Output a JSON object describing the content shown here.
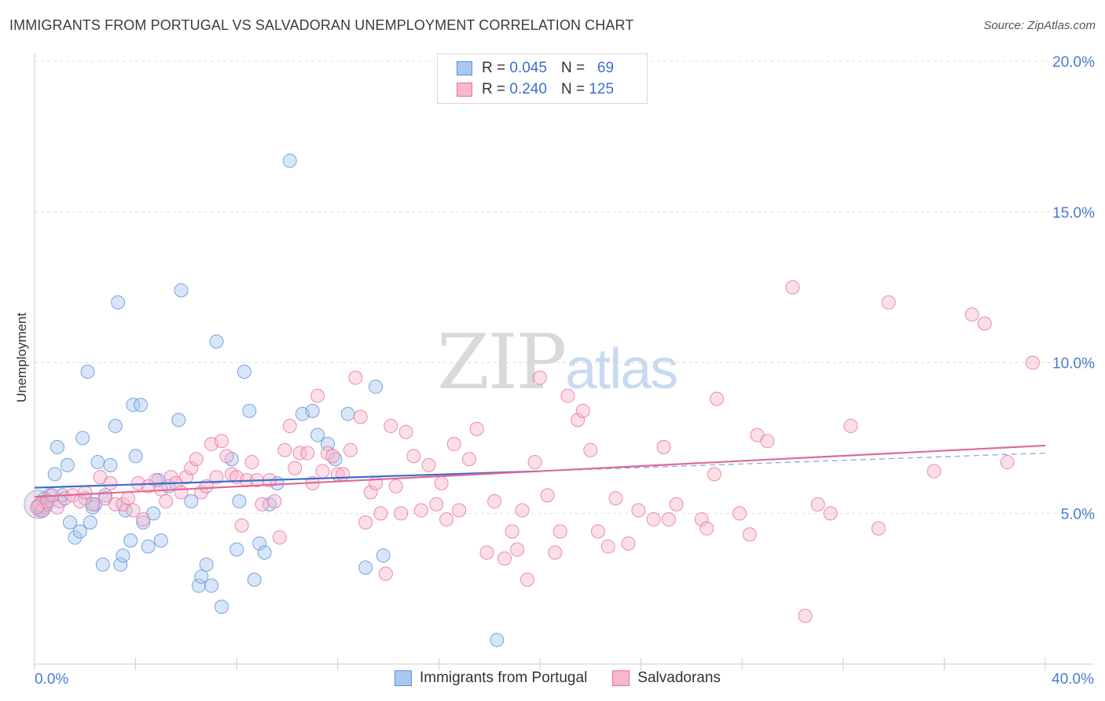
{
  "header": {
    "title": "IMMIGRANTS FROM PORTUGAL VS SALVADORAN UNEMPLOYMENT CORRELATION CHART",
    "source": "Source: ZipAtlas.com"
  },
  "watermark": {
    "zip": "ZIP",
    "atlas": "atlas"
  },
  "legend": {
    "rows": [
      {
        "r_label": "R =",
        "r_value": "0.045",
        "n_label": "N =",
        "n_value": "69",
        "color": "#a9c8f0"
      },
      {
        "r_label": "R =",
        "r_value": "0.240",
        "n_label": "N =",
        "n_value": "125",
        "color": "#f7b8cc"
      }
    ]
  },
  "bottom_legend": [
    {
      "label": "Immigrants from Portugal",
      "color": "#a9c8f0"
    },
    {
      "label": "Salvadorans",
      "color": "#f7b8cc"
    }
  ],
  "chart_data": {
    "type": "scatter",
    "ylabel": "Unemployment",
    "xlim": [
      0,
      40
    ],
    "ylim": [
      0,
      20
    ],
    "x_ticks": [
      "0.0%",
      "40.0%"
    ],
    "y_ticks": [
      {
        "value": 5,
        "label": "5.0%"
      },
      {
        "value": 10,
        "label": "10.0%"
      },
      {
        "value": 15,
        "label": "15.0%"
      },
      {
        "value": 20,
        "label": "20.0%"
      }
    ],
    "grid": true,
    "series": [
      {
        "name": "Immigrants from Portugal",
        "color": "#5b8fdc",
        "fill": "#a9c8f0",
        "trend": {
          "x0": 0,
          "y0": 5.85,
          "x1": 20,
          "y1": 6.4,
          "dash_to_x": 40,
          "dash_to_y": 7.0
        },
        "points": [
          [
            0.2,
            5.1
          ],
          [
            0.3,
            5.2
          ],
          [
            0.4,
            5.5
          ],
          [
            0.5,
            5.3
          ],
          [
            0.6,
            5.6
          ],
          [
            0.8,
            6.3
          ],
          [
            0.9,
            7.2
          ],
          [
            1.1,
            5.6
          ],
          [
            1.3,
            6.6
          ],
          [
            1.4,
            4.7
          ],
          [
            1.6,
            4.2
          ],
          [
            1.8,
            4.4
          ],
          [
            1.9,
            7.5
          ],
          [
            2.1,
            9.7
          ],
          [
            2.2,
            4.7
          ],
          [
            2.4,
            5.3
          ],
          [
            2.5,
            6.7
          ],
          [
            2.7,
            3.3
          ],
          [
            2.8,
            5.6
          ],
          [
            3.0,
            6.6
          ],
          [
            3.2,
            7.9
          ],
          [
            3.3,
            12.0
          ],
          [
            3.4,
            3.3
          ],
          [
            3.5,
            3.6
          ],
          [
            3.6,
            5.1
          ],
          [
            3.8,
            4.1
          ],
          [
            3.9,
            8.6
          ],
          [
            4.0,
            6.9
          ],
          [
            4.2,
            8.6
          ],
          [
            4.3,
            4.7
          ],
          [
            4.5,
            3.9
          ],
          [
            4.7,
            5.0
          ],
          [
            4.9,
            6.1
          ],
          [
            5.0,
            4.1
          ],
          [
            5.3,
            5.9
          ],
          [
            5.7,
            8.1
          ],
          [
            5.8,
            12.4
          ],
          [
            6.2,
            5.4
          ],
          [
            6.5,
            2.6
          ],
          [
            6.6,
            2.9
          ],
          [
            6.8,
            3.3
          ],
          [
            7.0,
            2.6
          ],
          [
            7.2,
            10.7
          ],
          [
            7.4,
            1.9
          ],
          [
            7.8,
            6.8
          ],
          [
            8.0,
            3.8
          ],
          [
            8.1,
            5.4
          ],
          [
            8.3,
            9.7
          ],
          [
            8.5,
            8.4
          ],
          [
            8.7,
            2.8
          ],
          [
            8.9,
            4.0
          ],
          [
            9.1,
            3.7
          ],
          [
            9.3,
            5.3
          ],
          [
            9.6,
            6.0
          ],
          [
            10.1,
            16.7
          ],
          [
            10.6,
            8.3
          ],
          [
            11.0,
            8.4
          ],
          [
            11.2,
            7.6
          ],
          [
            11.6,
            7.3
          ],
          [
            11.9,
            6.8
          ],
          [
            12.4,
            8.3
          ],
          [
            13.1,
            3.2
          ],
          [
            13.5,
            9.2
          ],
          [
            13.8,
            3.6
          ],
          [
            18.3,
            0.8
          ],
          [
            0.15,
            5.25
          ],
          [
            1.0,
            5.4
          ],
          [
            2.0,
            5.5
          ],
          [
            2.3,
            5.2
          ]
        ]
      },
      {
        "name": "Salvadorans",
        "color": "#e9709a",
        "fill": "#f7b8cc",
        "trend": {
          "x0": 0,
          "y0": 5.55,
          "x1": 40,
          "y1": 7.25
        },
        "points": [
          [
            0.2,
            5.3
          ],
          [
            0.3,
            5.1
          ],
          [
            0.5,
            5.4
          ],
          [
            0.7,
            5.6
          ],
          [
            0.9,
            5.2
          ],
          [
            1.2,
            5.5
          ],
          [
            1.5,
            5.6
          ],
          [
            1.8,
            5.4
          ],
          [
            2.0,
            5.7
          ],
          [
            2.3,
            5.3
          ],
          [
            2.6,
            6.2
          ],
          [
            2.8,
            5.5
          ],
          [
            3.0,
            6.0
          ],
          [
            3.2,
            5.3
          ],
          [
            3.5,
            5.3
          ],
          [
            3.7,
            5.5
          ],
          [
            3.9,
            5.1
          ],
          [
            4.1,
            6.0
          ],
          [
            4.3,
            4.8
          ],
          [
            4.5,
            5.9
          ],
          [
            4.8,
            6.1
          ],
          [
            5.0,
            5.8
          ],
          [
            5.2,
            5.4
          ],
          [
            5.4,
            6.2
          ],
          [
            5.6,
            6.0
          ],
          [
            5.8,
            5.7
          ],
          [
            6.0,
            6.2
          ],
          [
            6.2,
            6.5
          ],
          [
            6.4,
            6.8
          ],
          [
            6.6,
            5.7
          ],
          [
            6.8,
            5.9
          ],
          [
            7.0,
            7.3
          ],
          [
            7.2,
            6.2
          ],
          [
            7.4,
            7.4
          ],
          [
            7.6,
            6.9
          ],
          [
            7.8,
            6.3
          ],
          [
            8.0,
            6.2
          ],
          [
            8.2,
            4.6
          ],
          [
            8.4,
            6.1
          ],
          [
            8.6,
            6.7
          ],
          [
            8.8,
            6.1
          ],
          [
            9.0,
            5.3
          ],
          [
            9.3,
            6.1
          ],
          [
            9.5,
            5.4
          ],
          [
            9.7,
            4.2
          ],
          [
            9.9,
            7.1
          ],
          [
            10.1,
            7.9
          ],
          [
            10.3,
            6.5
          ],
          [
            10.5,
            7.0
          ],
          [
            10.8,
            7.0
          ],
          [
            11.0,
            6.0
          ],
          [
            11.2,
            8.9
          ],
          [
            11.4,
            6.4
          ],
          [
            11.6,
            7.0
          ],
          [
            11.8,
            6.9
          ],
          [
            12.0,
            6.3
          ],
          [
            12.2,
            6.3
          ],
          [
            12.5,
            7.1
          ],
          [
            12.7,
            9.5
          ],
          [
            12.9,
            8.2
          ],
          [
            13.1,
            4.7
          ],
          [
            13.3,
            5.7
          ],
          [
            13.5,
            6.0
          ],
          [
            13.7,
            5.0
          ],
          [
            13.9,
            3.0
          ],
          [
            14.1,
            7.9
          ],
          [
            14.3,
            5.9
          ],
          [
            14.5,
            5.0
          ],
          [
            14.7,
            7.7
          ],
          [
            15.0,
            6.9
          ],
          [
            15.3,
            5.1
          ],
          [
            15.6,
            6.6
          ],
          [
            15.9,
            5.3
          ],
          [
            16.1,
            6.0
          ],
          [
            16.3,
            4.8
          ],
          [
            16.6,
            7.3
          ],
          [
            16.8,
            5.1
          ],
          [
            17.2,
            6.8
          ],
          [
            17.5,
            7.8
          ],
          [
            17.9,
            3.7
          ],
          [
            18.2,
            5.4
          ],
          [
            18.6,
            3.5
          ],
          [
            18.9,
            4.4
          ],
          [
            19.1,
            3.8
          ],
          [
            19.3,
            5.1
          ],
          [
            19.5,
            2.8
          ],
          [
            19.8,
            6.7
          ],
          [
            20.0,
            9.5
          ],
          [
            20.3,
            5.6
          ],
          [
            20.6,
            3.7
          ],
          [
            20.8,
            4.4
          ],
          [
            21.1,
            8.9
          ],
          [
            21.5,
            8.1
          ],
          [
            21.7,
            8.4
          ],
          [
            22.0,
            7.1
          ],
          [
            22.3,
            4.4
          ],
          [
            22.7,
            3.9
          ],
          [
            23.0,
            5.5
          ],
          [
            23.5,
            4.0
          ],
          [
            23.9,
            5.1
          ],
          [
            24.5,
            4.8
          ],
          [
            24.9,
            7.2
          ],
          [
            25.1,
            4.8
          ],
          [
            25.4,
            5.3
          ],
          [
            26.4,
            4.8
          ],
          [
            26.6,
            4.5
          ],
          [
            26.9,
            6.3
          ],
          [
            27.0,
            8.8
          ],
          [
            27.9,
            5.0
          ],
          [
            28.3,
            4.3
          ],
          [
            28.6,
            7.6
          ],
          [
            29.0,
            7.4
          ],
          [
            30.0,
            12.5
          ],
          [
            30.5,
            1.6
          ],
          [
            31.0,
            5.3
          ],
          [
            31.5,
            5.0
          ],
          [
            32.3,
            7.9
          ],
          [
            33.4,
            4.5
          ],
          [
            33.8,
            12.0
          ],
          [
            35.6,
            6.4
          ],
          [
            37.1,
            11.6
          ],
          [
            37.6,
            11.3
          ],
          [
            38.5,
            6.7
          ],
          [
            39.5,
            10.0
          ],
          [
            0.1,
            5.2
          ]
        ]
      }
    ]
  }
}
